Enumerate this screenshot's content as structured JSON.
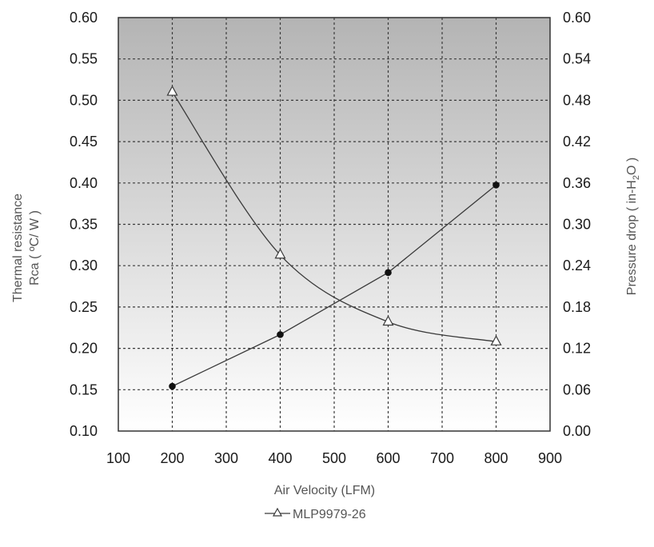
{
  "chart_data": {
    "type": "line",
    "x_axis": {
      "label": "Air Velocity (LFM)",
      "range": [
        100,
        900
      ],
      "ticks": [
        "100",
        "200",
        "300",
        "400",
        "500",
        "600",
        "700",
        "800",
        "900"
      ]
    },
    "y_left": {
      "label_line1": "Thermal resistance",
      "label_line2": "Rca ( ºC/ W )",
      "range": [
        0.1,
        0.6
      ],
      "ticks": [
        "0.10",
        "0.15",
        "0.20",
        "0.25",
        "0.30",
        "0.35",
        "0.40",
        "0.45",
        "0.50",
        "0.55",
        "0.60"
      ]
    },
    "y_right": {
      "label_prefix": "Pressure drop  ( in-H",
      "label_sub": "2",
      "label_suffix": "O )",
      "range": [
        0.0,
        0.6
      ],
      "ticks": [
        "0.00",
        "0.06",
        "0.12",
        "0.18",
        "0.24",
        "0.30",
        "0.36",
        "0.42",
        "0.48",
        "0.54",
        "0.60"
      ]
    },
    "series": [
      {
        "name": "MLP9979-26",
        "axis": "left",
        "marker": "open-triangle",
        "x": [
          200,
          400,
          600,
          800
        ],
        "y": [
          0.51,
          0.313,
          0.232,
          0.208
        ]
      },
      {
        "axis": "right",
        "marker": "filled-circle",
        "x": [
          200,
          400,
          600,
          800
        ],
        "y": [
          0.065,
          0.14,
          0.23,
          0.357
        ]
      }
    ],
    "grid": true,
    "legend": {
      "placement": "bottom-center",
      "label": "MLP9979-26"
    },
    "colors": {
      "plot_top": "#b4b4b4",
      "plot_bottom": "#ffffff",
      "line": "#3a3a3a",
      "marker": "#111111"
    }
  }
}
